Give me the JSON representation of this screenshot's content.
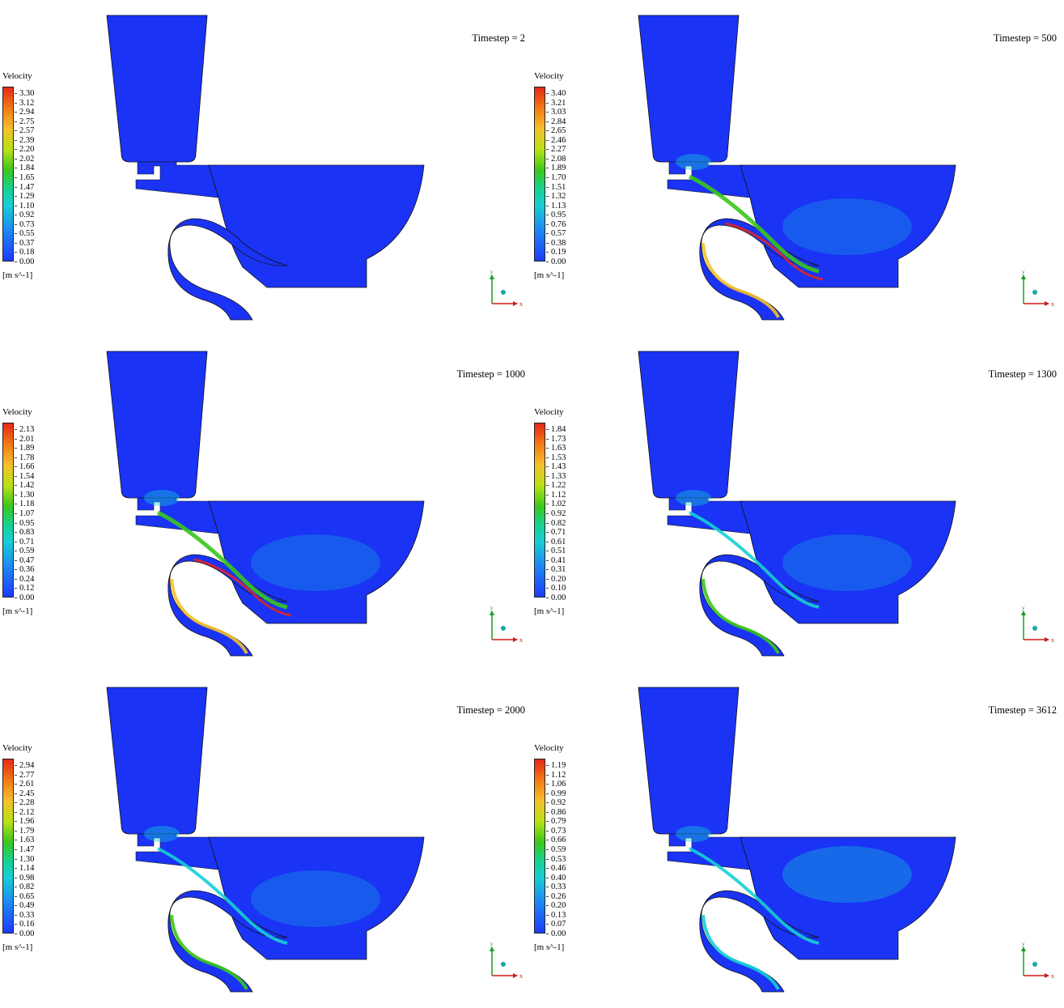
{
  "panels": [
    {
      "timestep": "Timestep = 2",
      "legend_title": "Velocity",
      "unit": "[m s^-1]",
      "ticks": [
        "3.30",
        "3.12",
        "2.94",
        "2.75",
        "2.57",
        "2.39",
        "2.20",
        "2.02",
        "1.84",
        "1.65",
        "1.47",
        "1.29",
        "1.10",
        "0.92",
        "0.73",
        "0.55",
        "0.37",
        "0.18",
        "0.00"
      ],
      "flow": "none"
    },
    {
      "timestep": "Timestep = 500",
      "legend_title": "Velocity",
      "unit": "[m s^-1]",
      "ticks": [
        "3.40",
        "3.21",
        "3.03",
        "2.84",
        "2.65",
        "2.46",
        "2.27",
        "2.08",
        "1.89",
        "1.70",
        "1.51",
        "1.32",
        "1.13",
        "0.95",
        "0.76",
        "0.57",
        "0.38",
        "0.19",
        "0.00"
      ],
      "flow": "strong"
    },
    {
      "timestep": "Timestep = 1000",
      "legend_title": "Velocity",
      "unit": "[m s^-1]",
      "ticks": [
        "2.13",
        "2.01",
        "1.89",
        "1.78",
        "1.66",
        "1.54",
        "1.42",
        "1.30",
        "1.18",
        "1.07",
        "0.95",
        "0.83",
        "0.71",
        "0.59",
        "0.47",
        "0.36",
        "0.24",
        "0.12",
        "0.00"
      ],
      "flow": "strong"
    },
    {
      "timestep": "Timestep = 1300",
      "legend_title": "Velocity",
      "unit": "[m s^-1]",
      "ticks": [
        "1.84",
        "1.73",
        "1.63",
        "1.53",
        "1.43",
        "1.33",
        "1.22",
        "1.12",
        "1.02",
        "0.92",
        "0.82",
        "0.71",
        "0.61",
        "0.51",
        "0.41",
        "0.31",
        "0.20",
        "0.10",
        "0.00"
      ],
      "flow": "medium"
    },
    {
      "timestep": "Timestep = 2000",
      "legend_title": "Velocity",
      "unit": "[m s^-1]",
      "ticks": [
        "2.94",
        "2.77",
        "2.61",
        "2.45",
        "2.28",
        "2.12",
        "1.96",
        "1.79",
        "1.63",
        "1.47",
        "1.30",
        "1.14",
        "0.98",
        "0.82",
        "0.65",
        "0.49",
        "0.33",
        "0.16",
        "0.00"
      ],
      "flow": "medium"
    },
    {
      "timestep": "Timestep = 3612",
      "legend_title": "Velocity",
      "unit": "[m s^-1]",
      "ticks": [
        "1.19",
        "1.12",
        "1.06",
        "0.99",
        "0.92",
        "0.86",
        "0.79",
        "0.73",
        "0.66",
        "0.59",
        "0.53",
        "0.46",
        "0.40",
        "0.33",
        "0.26",
        "0.20",
        "0.13",
        "0.07",
        "0.00"
      ],
      "flow": "weak"
    }
  ],
  "axes_labels": {
    "x": "x",
    "y": "y"
  },
  "colors": {
    "domain": "#1a33f5",
    "low": "#1d3bff",
    "mid": "#15cfd6",
    "high_green": "#39c71c",
    "high_yellow": "#f5c12a",
    "peak": "#e8261a"
  }
}
